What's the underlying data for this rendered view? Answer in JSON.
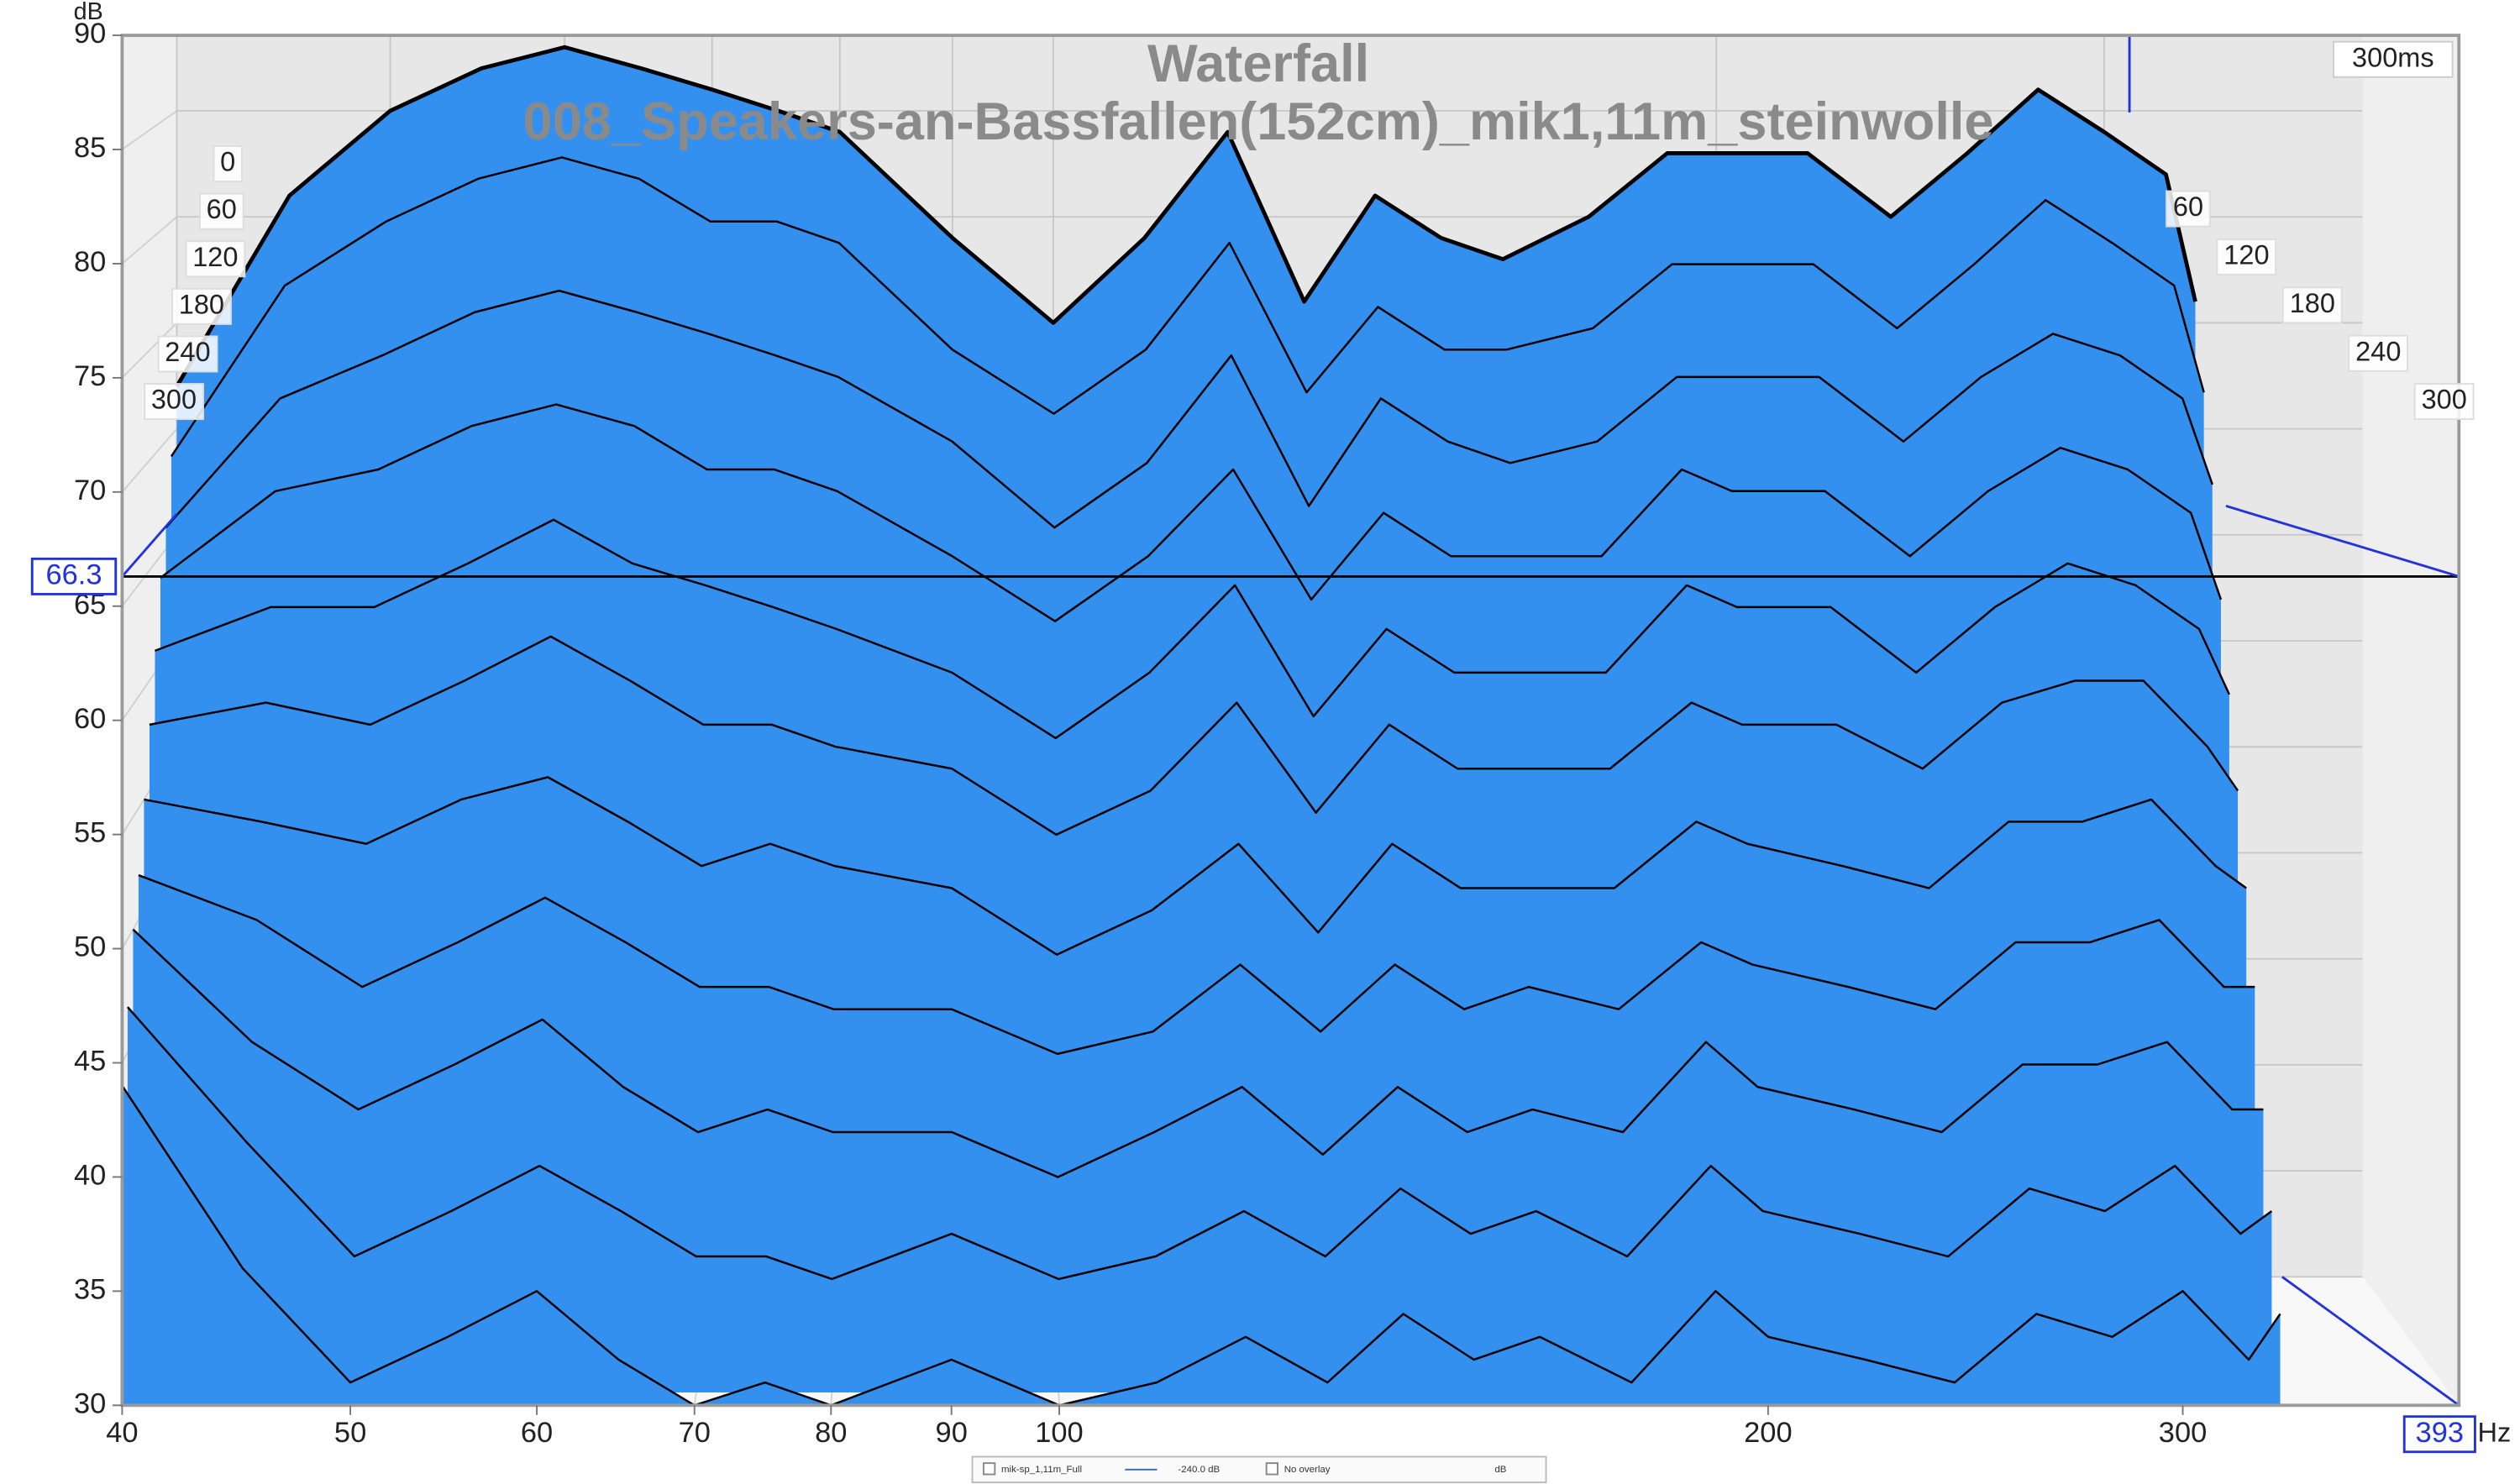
{
  "chart_data": {
    "type": "waterfall",
    "title": "Waterfall",
    "subtitle": "008_Speakers-an-Bassfallen(152cm)_mik1,11m_steinwolle",
    "x_unit": "Hz",
    "y_unit": "dB",
    "log_x": true,
    "xlim": [
      40,
      393
    ],
    "xticks": [
      40,
      50,
      60,
      70,
      80,
      90,
      100,
      200,
      300
    ],
    "ylim": [
      30,
      90
    ],
    "yticks": [
      30,
      35,
      40,
      45,
      50,
      55,
      60,
      65,
      70,
      75,
      80,
      85,
      90
    ],
    "zlim": [
      0,
      300
    ],
    "zlim_label": "300ms",
    "zticks": [
      0,
      60,
      120,
      180,
      240,
      300
    ],
    "cursor": {
      "x": 393,
      "y": 66.3
    },
    "color": "#3390ef",
    "grid": true,
    "x": [
      40,
      45,
      50,
      55,
      60,
      65,
      70,
      75,
      80,
      90,
      100,
      110,
      120,
      130,
      140,
      150,
      160,
      175,
      190,
      200,
      220,
      240,
      260,
      280,
      300,
      320,
      330
    ],
    "z": [
      0,
      30,
      60,
      90,
      120,
      150,
      180,
      210,
      240,
      270,
      300
    ],
    "series": [
      {
        "values": [
          72,
          81,
          85,
          87,
          88,
          87,
          86,
          85,
          84,
          79,
          75,
          79,
          84,
          76,
          81,
          79,
          78,
          80,
          83,
          83,
          83,
          80,
          83,
          86,
          84,
          82,
          76
        ]
      },
      {
        "values": [
          69,
          77,
          80,
          82,
          83,
          82,
          80,
          80,
          79,
          74,
          71,
          74,
          79,
          72,
          76,
          74,
          74,
          75,
          78,
          78,
          78,
          75,
          78,
          81,
          79,
          77,
          72
        ]
      },
      {
        "values": [
          66,
          72,
          74,
          76,
          77,
          76,
          75,
          74,
          73,
          70,
          66,
          69,
          74,
          67,
          72,
          70,
          69,
          70,
          73,
          73,
          73,
          70,
          73,
          75,
          74,
          72,
          68
        ]
      },
      {
        "values": [
          64,
          68,
          69,
          71,
          72,
          71,
          69,
          69,
          68,
          65,
          62,
          65,
          69,
          63,
          67,
          65,
          65,
          65,
          69,
          68,
          68,
          65,
          68,
          70,
          69,
          67,
          63
        ]
      },
      {
        "values": [
          61,
          63,
          63,
          65,
          67,
          65,
          64,
          63,
          62,
          60,
          57,
          60,
          64,
          58,
          62,
          60,
          60,
          60,
          64,
          63,
          63,
          60,
          63,
          65,
          64,
          62,
          59
        ]
      },
      {
        "values": [
          58,
          59,
          58,
          60,
          62,
          60,
          58,
          58,
          57,
          56,
          53,
          55,
          59,
          54,
          58,
          56,
          56,
          56,
          59,
          58,
          58,
          56,
          59,
          60,
          60,
          57,
          55
        ]
      },
      {
        "values": [
          55,
          54,
          53,
          55,
          56,
          54,
          52,
          53,
          52,
          51,
          48,
          50,
          53,
          49,
          53,
          51,
          51,
          51,
          54,
          53,
          52,
          51,
          54,
          54,
          55,
          52,
          51
        ]
      },
      {
        "values": [
          52,
          50,
          47,
          49,
          51,
          49,
          47,
          47,
          46,
          46,
          44,
          45,
          48,
          45,
          48,
          46,
          47,
          46,
          49,
          48,
          47,
          46,
          49,
          49,
          50,
          47,
          47
        ]
      },
      {
        "values": [
          50,
          45,
          42,
          44,
          46,
          43,
          41,
          42,
          41,
          41,
          39,
          41,
          43,
          40,
          43,
          41,
          42,
          41,
          45,
          43,
          42,
          41,
          44,
          44,
          45,
          42,
          42
        ]
      },
      {
        "values": [
          47,
          41,
          36,
          38,
          40,
          38,
          36,
          36,
          35,
          37,
          35,
          36,
          38,
          36,
          39,
          37,
          38,
          36,
          40,
          38,
          37,
          36,
          39,
          38,
          40,
          37,
          38
        ]
      },
      {
        "values": [
          44,
          36,
          31,
          33,
          35,
          32,
          30,
          31,
          30,
          32,
          30,
          31,
          33,
          31,
          34,
          32,
          33,
          31,
          35,
          33,
          32,
          31,
          34,
          33,
          35,
          32,
          34
        ]
      }
    ],
    "footer": [
      "mik-sp_1,11m_Full",
      "-240.0 dB",
      "No overlay",
      "dB"
    ]
  }
}
